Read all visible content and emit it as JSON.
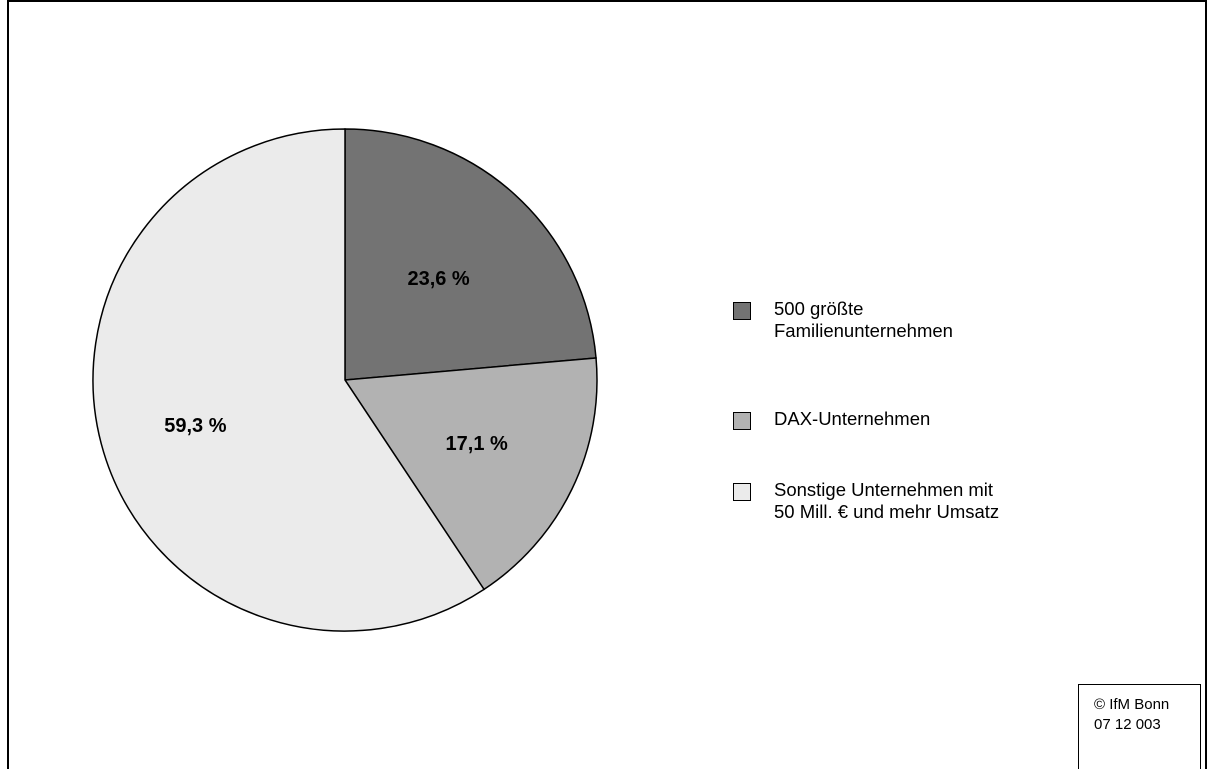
{
  "chart_data": {
    "type": "pie",
    "slices": [
      {
        "label": "500 größte Familienunternehmen",
        "value": 23.6,
        "value_label": "23,6 %",
        "color": "#737373"
      },
      {
        "label": "DAX-Unternehmen",
        "value": 17.1,
        "value_label": "17,1 %",
        "color": "#b2b2b2"
      },
      {
        "label": "Sonstige Unternehmen mit 50 Mill. € und mehr Umsatz",
        "value": 59.3,
        "value_label": "59,3 %",
        "color": "#ebebeb"
      }
    ],
    "legend": [
      {
        "text": "500 größte\nFamilienunternehmen",
        "color": "#737373"
      },
      {
        "text": "DAX-Unternehmen",
        "color": "#b2b2b2"
      },
      {
        "text": "Sonstige Unternehmen mit\n50 Mill. € und mehr Umsatz",
        "color": "#ebebeb"
      }
    ],
    "legend_position": "right",
    "start": "top, clockwise"
  },
  "copyright": {
    "text": "© IfM Bonn\n07  12  003"
  }
}
